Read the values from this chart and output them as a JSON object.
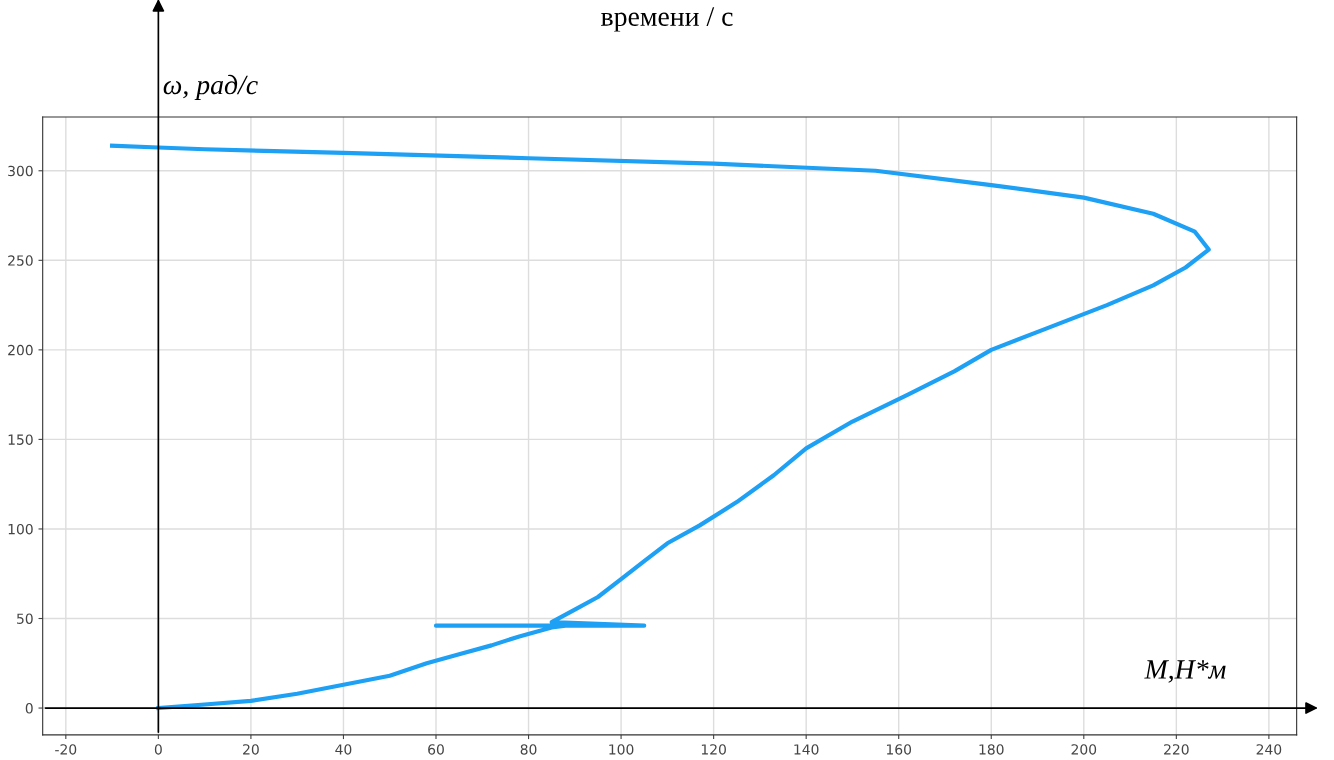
{
  "chart_data": {
    "type": "line",
    "title": "времени / с",
    "xlabel": "M,Н*м",
    "ylabel": "ω, рад/с",
    "x": [
      0,
      10,
      20,
      30,
      40,
      50,
      58,
      65,
      72,
      78,
      85,
      88,
      60,
      105,
      85,
      90,
      95,
      100,
      105,
      110,
      117,
      125,
      133,
      140,
      150,
      162,
      172,
      180,
      192,
      205,
      215,
      222,
      227,
      224,
      215,
      200,
      180,
      155,
      120,
      80,
      40,
      10,
      0,
      -10
    ],
    "series": [
      {
        "color": "#1ea0f5",
        "values": [
          0,
          2,
          4,
          8,
          13,
          18,
          25,
          30,
          35,
          40,
          45,
          46,
          46,
          46,
          48,
          55,
          62,
          72,
          82,
          92,
          102,
          115,
          130,
          145,
          160,
          175,
          188,
          200,
          212,
          225,
          236,
          246,
          256,
          266,
          276,
          285,
          292,
          300,
          304,
          307,
          310,
          312,
          313,
          314
        ]
      }
    ],
    "xlim": [
      -25,
      246
    ],
    "ylim": [
      -15,
      330
    ],
    "xticks": [
      -20,
      0,
      20,
      40,
      60,
      80,
      100,
      120,
      140,
      160,
      180,
      200,
      220,
      240
    ],
    "yticks": [
      0,
      50,
      100,
      150,
      200,
      250,
      300
    ],
    "grid": true,
    "marker": "none",
    "line_style": "solid"
  }
}
